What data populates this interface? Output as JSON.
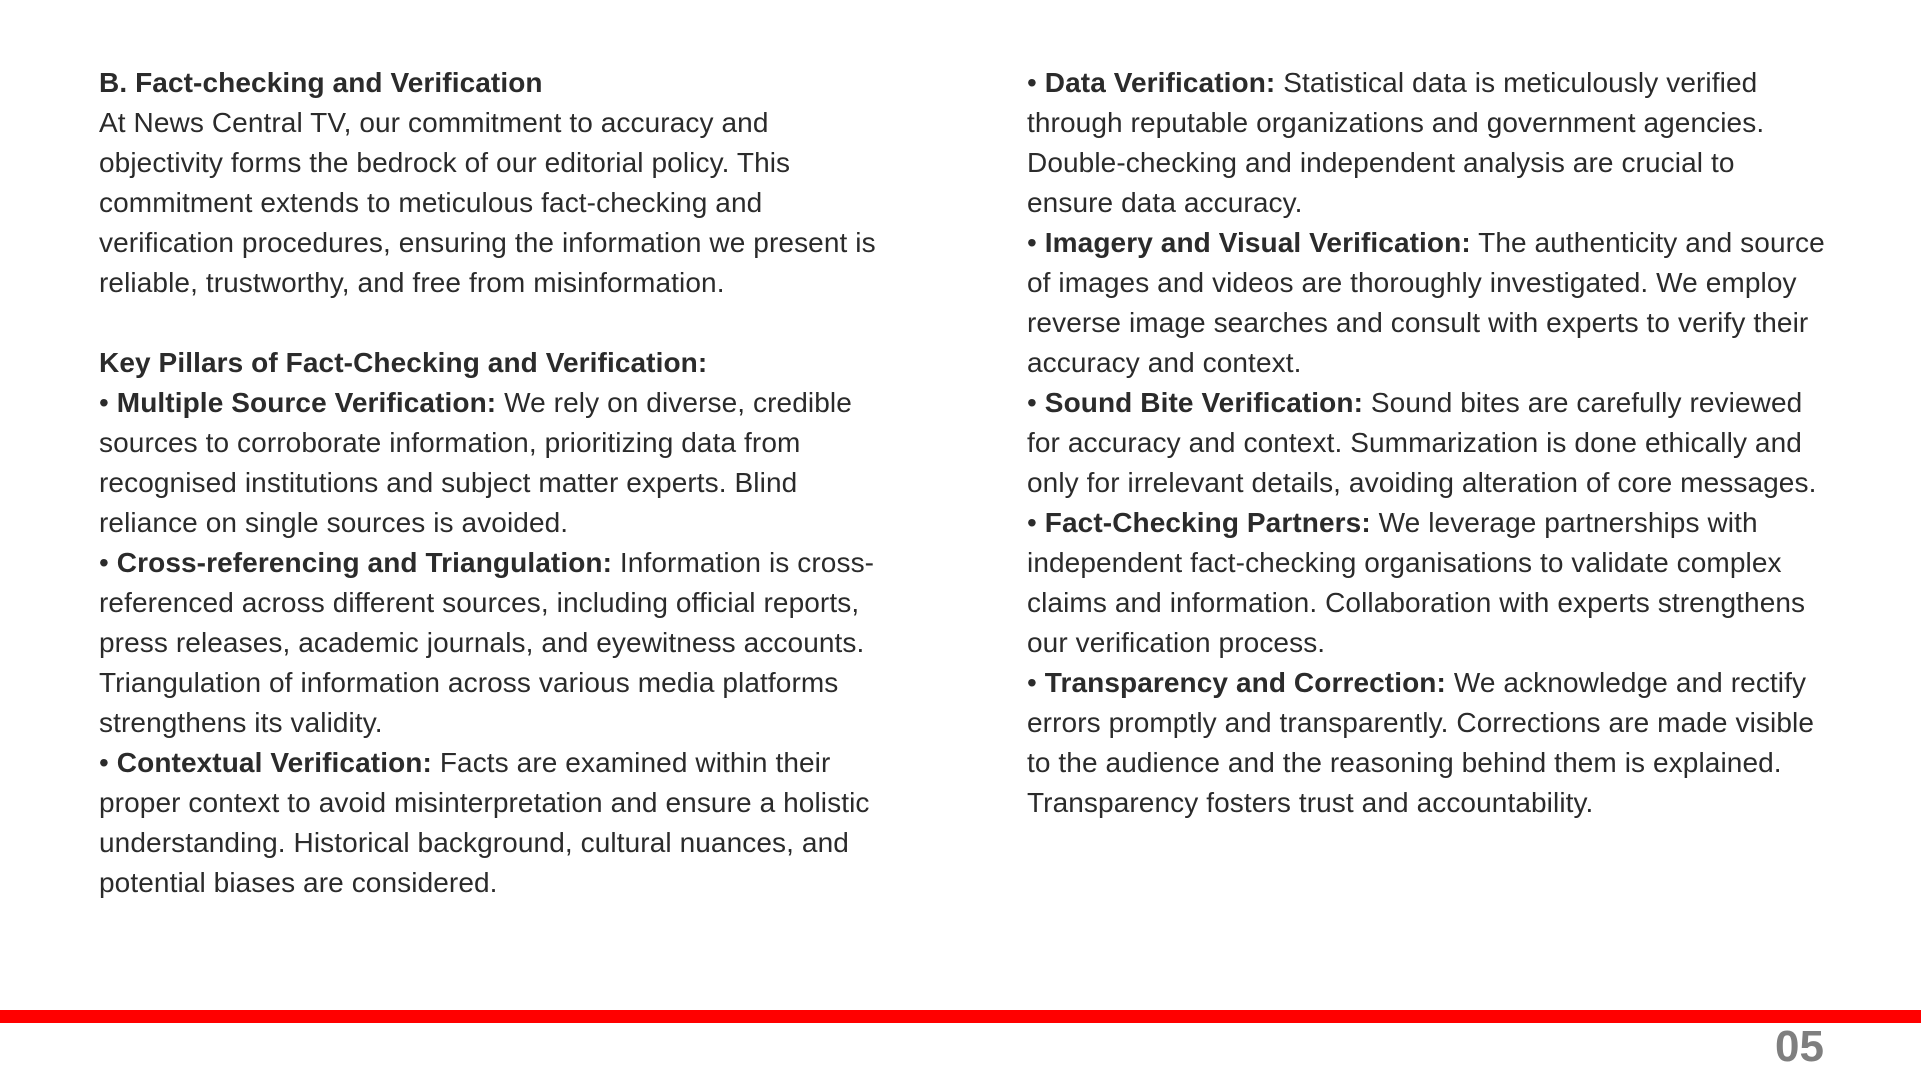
{
  "section": {
    "heading": "B. Fact-checking and Verification",
    "intro": "At News Central TV, our commitment to accuracy and objectivity forms the bedrock of our editorial policy. This commitment extends to meticulous fact-checking and verification procedures, ensuring the information we present is reliable, trustworthy, and free from misinformation."
  },
  "pillars": {
    "heading": "Key Pillars of Fact-Checking and Verification:",
    "left": [
      {
        "bullet": "•",
        "title": "Multiple Source Verification:",
        "text": "We rely on diverse, credible sources to corroborate information, prioritizing data from recognised institutions and subject matter experts. Blind reliance on single sources is avoided."
      },
      {
        "bullet": "•",
        "title": "Cross-referencing and Triangulation:",
        "text": "Information is cross-referenced across different sources, including official reports, press releases, academic journals, and eyewitness accounts. Triangulation of information across various media platforms strengthens its validity."
      },
      {
        "bullet": "•",
        "title": "Contextual Verification:",
        "text": "Facts are examined within their proper context to avoid misinterpretation and ensure a holistic understanding. Historical background, cultural nuances, and potential biases are considered."
      }
    ],
    "right": [
      {
        "bullet": "•",
        "title": "Data Verification:",
        "text": "Statistical data is meticulously verified through reputable organizations and government agencies. Double-checking and independent analysis are crucial to ensure data accuracy."
      },
      {
        "bullet": "•",
        "title": "Imagery and Visual Verification:",
        "text": "The authenticity and source of images and videos are thoroughly investigated. We employ reverse image searches and consult with experts to verify their accuracy and context."
      },
      {
        "bullet": "•",
        "title": "Sound Bite Verification:",
        "text": "Sound bites are carefully reviewed for accuracy and context. Summarization is done ethically and only for irrelevant details, avoiding alteration of core messages."
      },
      {
        "bullet": "•",
        "title": "Fact-Checking Partners:",
        "text": "We leverage partnerships with independent fact-checking organisations to validate complex claims and information. Collaboration with experts strengthens our verification process."
      },
      {
        "bullet": "•",
        "title": "Transparency and Correction:",
        "text": "We acknowledge and rectify errors promptly and transparently. Corrections are made visible to the audience and the reasoning behind them is explained. Transparency fosters trust and accountability."
      }
    ]
  },
  "footer": {
    "page_number": "05",
    "accent_color": "#ff0000",
    "page_number_color": "#7f7f7f"
  }
}
